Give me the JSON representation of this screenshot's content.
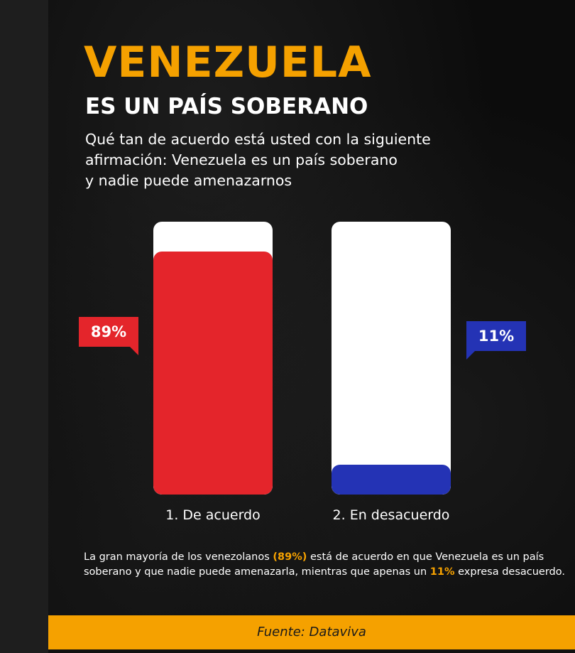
{
  "header": {
    "title": "VENEZUELA",
    "subtitle": "ES UN PAÍS SOBERANO",
    "question_lines": [
      "Qué tan de acuerdo está usted con la siguiente",
      "afirmación: Venezuela es un país soberano",
      "y nadie puede amenazarnos"
    ]
  },
  "chart_data": {
    "type": "bar",
    "categories": [
      "1. De acuerdo",
      "2. En desacuerdo"
    ],
    "values": [
      89,
      11
    ],
    "value_labels": [
      "89%",
      "11%"
    ],
    "ylim": [
      0,
      100
    ],
    "colors": [
      "#e4252b",
      "#2433b5"
    ],
    "track_color": "#ffffff"
  },
  "summary": {
    "part1": "La gran mayoría de los venezolanos ",
    "highlight1": "(89%)",
    "part2": " está de acuerdo en que Venezuela es un país soberano y que nadie puede amenazarla, mientras que apenas un ",
    "highlight2": "11%",
    "part3": " expresa desacuerdo."
  },
  "footer": {
    "source": "Fuente: Dataviva"
  },
  "colors": {
    "accent": "#f5a100",
    "background": "#0c0c0c"
  }
}
